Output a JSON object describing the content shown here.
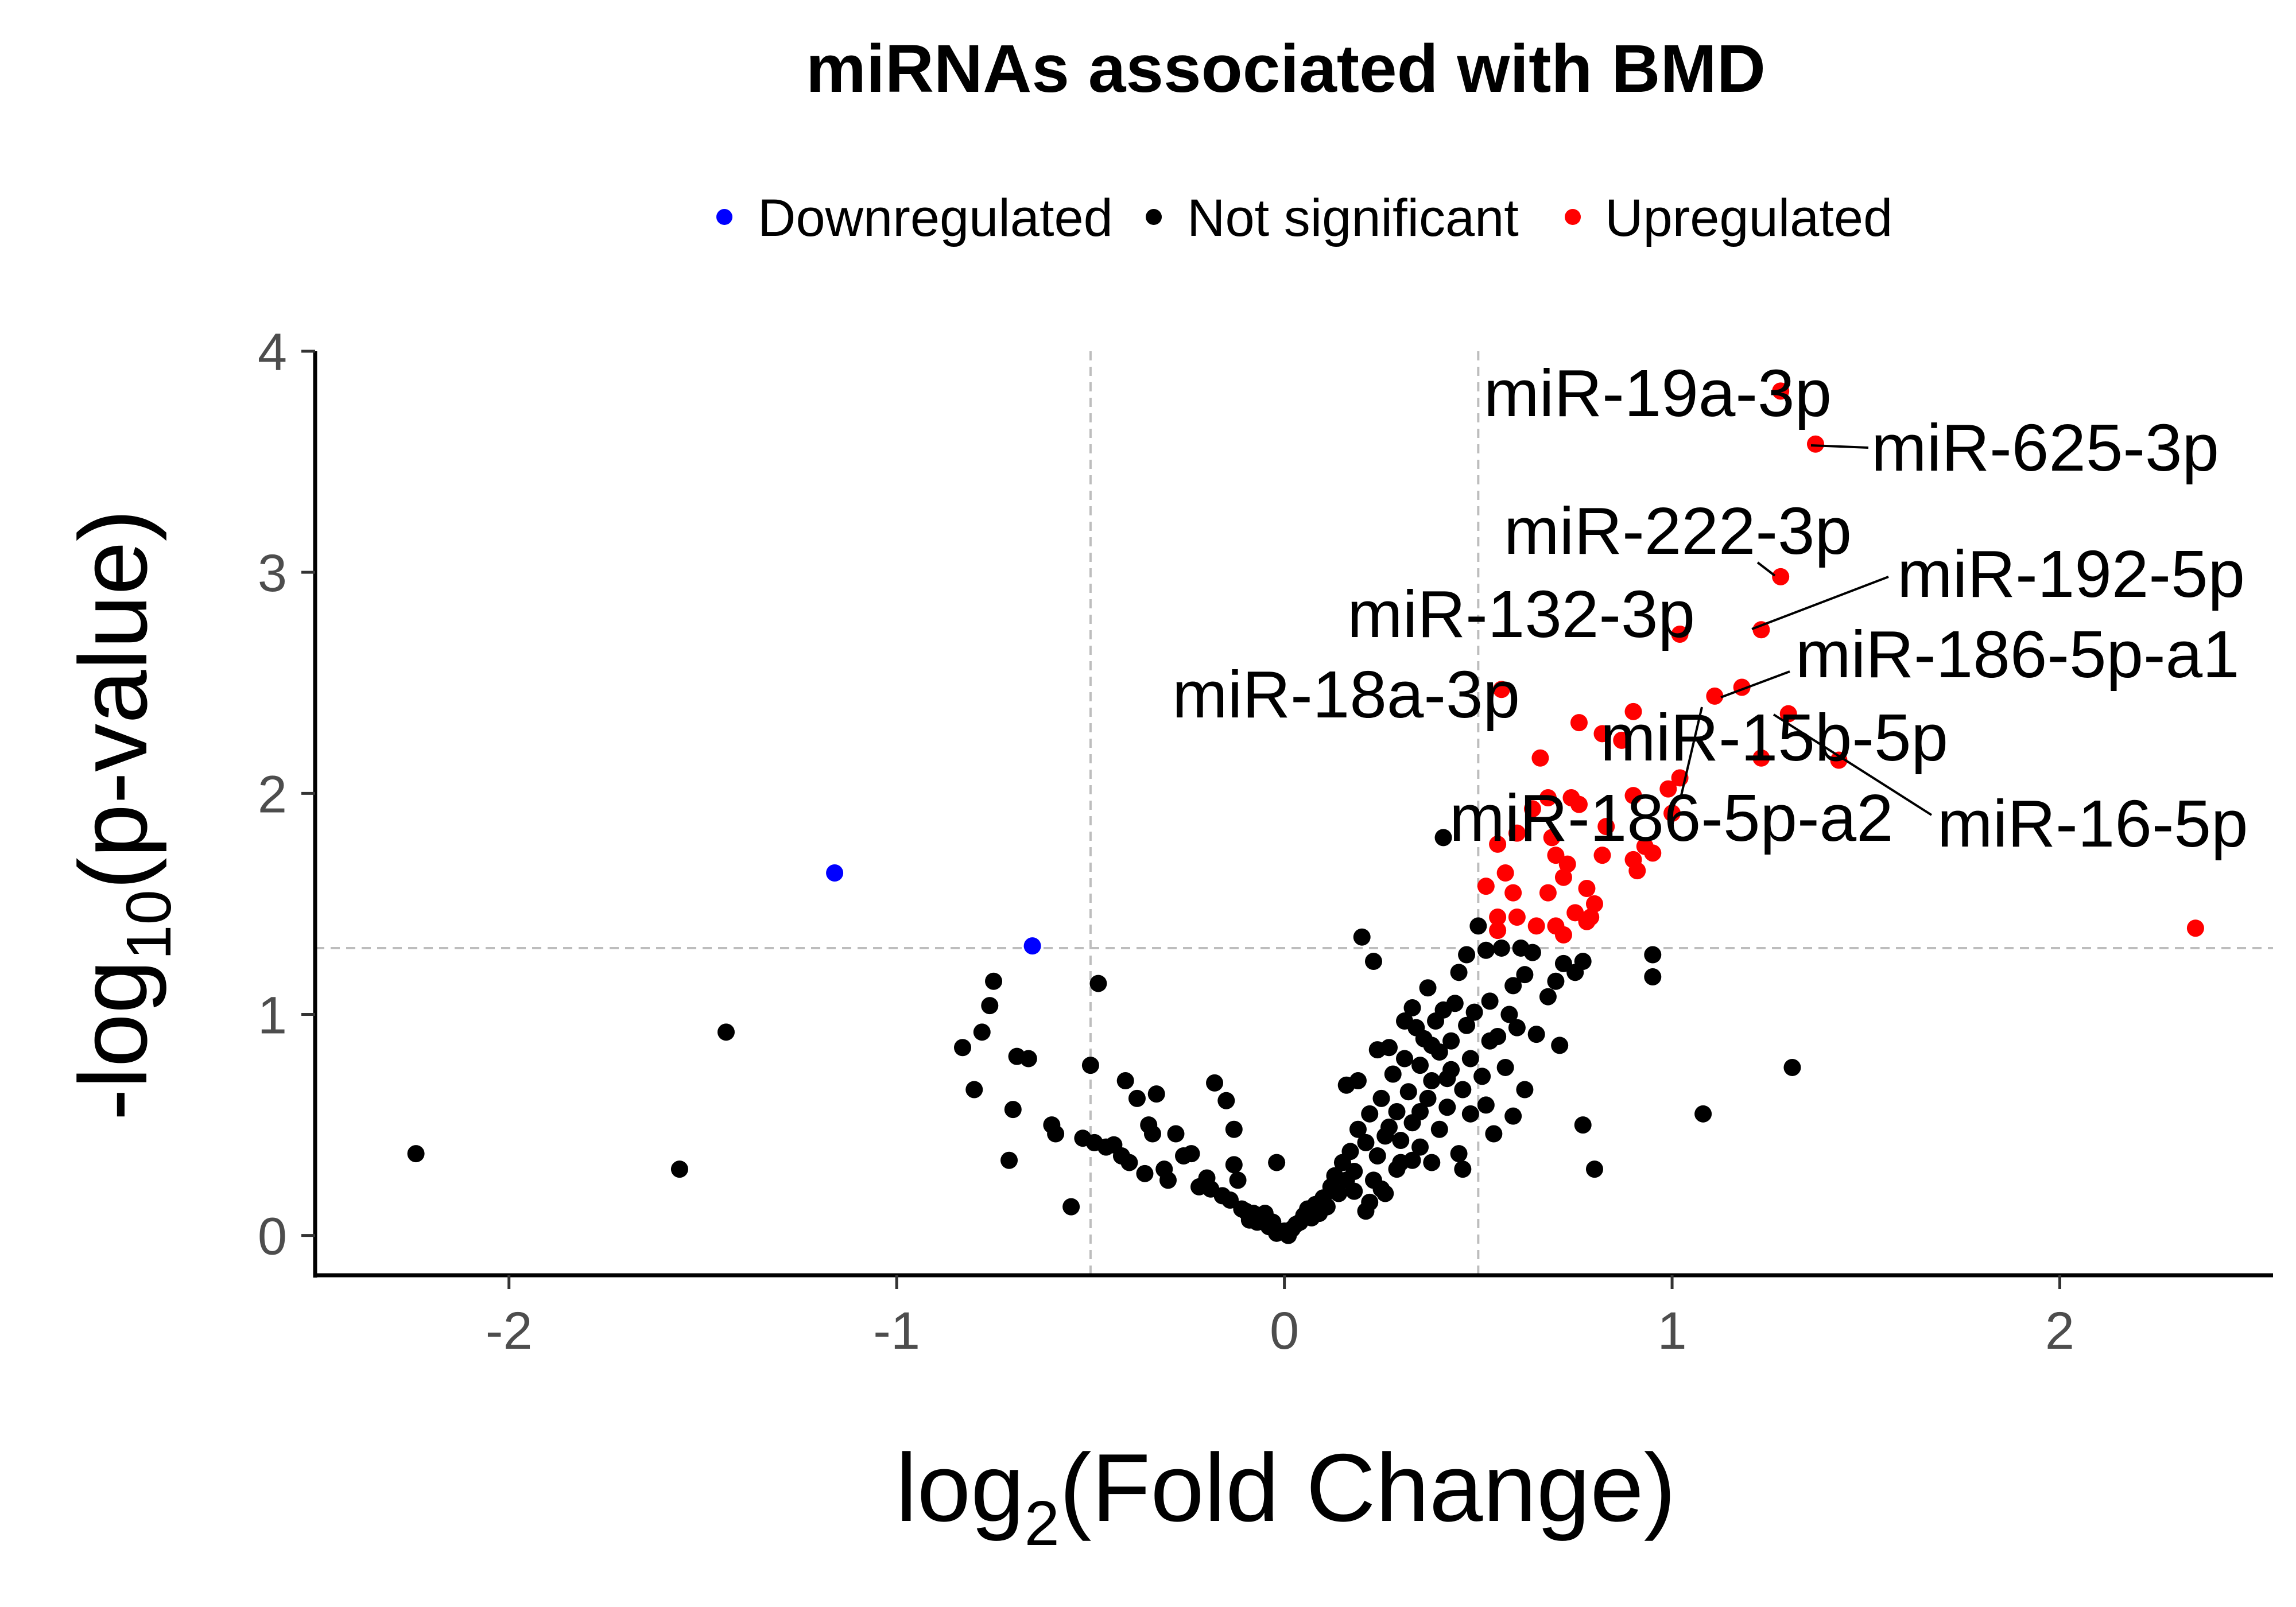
{
  "chart_data": {
    "type": "scatter",
    "title": "miRNAs associated with BMD",
    "xlabel": {
      "base": "log",
      "sub": "2",
      "rest": "(Fold Change)"
    },
    "ylabel": {
      "prefix": "-log",
      "sub": "10",
      "rest": "(p-value)"
    },
    "xlim": [
      -2.5,
      2.55
    ],
    "ylim": [
      -0.18,
      4.0
    ],
    "xticks": [
      -2,
      -1,
      0,
      1,
      2
    ],
    "yticks": [
      0,
      1,
      2,
      3,
      4
    ],
    "grid": false,
    "legend_position": "top",
    "thresholds": {
      "x": [
        -0.5,
        0.5
      ],
      "y": 1.3
    },
    "colors": {
      "Downregulated": "#0000ff",
      "Not significant": "#000000",
      "Upregulated": "#ff0000",
      "threshold_line": "#bdbdbd"
    },
    "series": [
      {
        "name": "Downregulated",
        "points": [
          [
            -1.16,
            1.64
          ],
          [
            -0.65,
            1.31
          ]
        ]
      },
      {
        "name": "Not significant",
        "points": [
          [
            -2.24,
            0.37
          ],
          [
            -1.56,
            0.3
          ],
          [
            -1.44,
            0.92
          ],
          [
            -0.83,
            0.85
          ],
          [
            -0.8,
            0.66
          ],
          [
            -0.78,
            0.92
          ],
          [
            -0.76,
            1.04
          ],
          [
            -0.75,
            1.15
          ],
          [
            -0.7,
            0.57
          ],
          [
            -0.71,
            0.34
          ],
          [
            -0.69,
            0.81
          ],
          [
            -0.66,
            0.8
          ],
          [
            -0.6,
            0.5
          ],
          [
            -0.59,
            0.46
          ],
          [
            -0.55,
            0.13
          ],
          [
            -0.52,
            0.44
          ],
          [
            -0.5,
            0.77
          ],
          [
            -0.48,
            1.14
          ],
          [
            -0.49,
            0.42
          ],
          [
            -0.46,
            0.4
          ],
          [
            -0.44,
            0.41
          ],
          [
            -0.42,
            0.36
          ],
          [
            -0.41,
            0.7
          ],
          [
            -0.38,
            0.62
          ],
          [
            -0.4,
            0.33
          ],
          [
            -0.36,
            0.28
          ],
          [
            -0.35,
            0.5
          ],
          [
            -0.34,
            0.46
          ],
          [
            -0.33,
            0.64
          ],
          [
            -0.31,
            0.3
          ],
          [
            -0.3,
            0.25
          ],
          [
            -0.28,
            0.46
          ],
          [
            -0.26,
            0.36
          ],
          [
            -0.24,
            0.37
          ],
          [
            -0.22,
            0.22
          ],
          [
            -0.2,
            0.26
          ],
          [
            -0.19,
            0.21
          ],
          [
            -0.18,
            0.69
          ],
          [
            -0.16,
            0.18
          ],
          [
            -0.15,
            0.61
          ],
          [
            -0.13,
            0.48
          ],
          [
            -0.14,
            0.16
          ],
          [
            -0.13,
            0.32
          ],
          [
            -0.12,
            0.25
          ],
          [
            -0.11,
            0.12
          ],
          [
            -0.1,
            0.11
          ],
          [
            -0.09,
            0.07
          ],
          [
            -0.08,
            0.1
          ],
          [
            -0.07,
            0.06
          ],
          [
            -0.06,
            0.08
          ],
          [
            -0.05,
            0.1
          ],
          [
            -0.04,
            0.04
          ],
          [
            -0.03,
            0.06
          ],
          [
            -0.02,
            0.33
          ],
          [
            -0.02,
            0.01
          ],
          [
            0.0,
            0.02
          ],
          [
            0.01,
            0.0
          ],
          [
            0.02,
            0.03
          ],
          [
            0.03,
            0.05
          ],
          [
            0.04,
            0.06
          ],
          [
            0.05,
            0.09
          ],
          [
            0.06,
            0.12
          ],
          [
            0.07,
            0.08
          ],
          [
            0.08,
            0.14
          ],
          [
            0.09,
            0.1
          ],
          [
            0.1,
            0.17
          ],
          [
            0.11,
            0.13
          ],
          [
            0.12,
            0.22
          ],
          [
            0.13,
            0.27
          ],
          [
            0.14,
            0.19
          ],
          [
            0.15,
            0.33
          ],
          [
            0.16,
            0.25
          ],
          [
            0.16,
            0.68
          ],
          [
            0.17,
            0.38
          ],
          [
            0.18,
            0.29
          ],
          [
            0.19,
            0.48
          ],
          [
            0.19,
            0.7
          ],
          [
            0.2,
            1.35
          ],
          [
            0.21,
            0.42
          ],
          [
            0.22,
            0.55
          ],
          [
            0.22,
            0.15
          ],
          [
            0.23,
            1.24
          ],
          [
            0.24,
            0.84
          ],
          [
            0.24,
            0.36
          ],
          [
            0.25,
            0.62
          ],
          [
            0.26,
            0.45
          ],
          [
            0.26,
            0.19
          ],
          [
            0.27,
            0.85
          ],
          [
            0.28,
            0.73
          ],
          [
            0.29,
            0.56
          ],
          [
            0.3,
            0.43
          ],
          [
            0.3,
            0.33
          ],
          [
            0.31,
            0.97
          ],
          [
            0.31,
            0.8
          ],
          [
            0.32,
            0.65
          ],
          [
            0.33,
            1.03
          ],
          [
            0.33,
            0.51
          ],
          [
            0.34,
            0.94
          ],
          [
            0.35,
            0.77
          ],
          [
            0.35,
            0.4
          ],
          [
            0.36,
            0.89
          ],
          [
            0.37,
            0.62
          ],
          [
            0.37,
            1.12
          ],
          [
            0.38,
            0.33
          ],
          [
            0.38,
            0.7
          ],
          [
            0.39,
            0.97
          ],
          [
            0.4,
            0.48
          ],
          [
            0.4,
            0.83
          ],
          [
            0.41,
            1.02
          ],
          [
            0.42,
            0.58
          ],
          [
            0.43,
            0.88
          ],
          [
            0.43,
            0.75
          ],
          [
            0.44,
            1.05
          ],
          [
            0.45,
            0.37
          ],
          [
            0.45,
            1.19
          ],
          [
            0.46,
            0.66
          ],
          [
            0.47,
            0.95
          ],
          [
            0.47,
            1.27
          ],
          [
            0.48,
            0.55
          ],
          [
            0.48,
            0.8
          ],
          [
            0.49,
            1.01
          ],
          [
            0.5,
            1.4
          ],
          [
            0.51,
            0.72
          ],
          [
            0.52,
            0.59
          ],
          [
            0.53,
            0.88
          ],
          [
            0.53,
            1.06
          ],
          [
            0.54,
            0.46
          ],
          [
            0.55,
            0.9
          ],
          [
            0.56,
            1.3
          ],
          [
            0.57,
            0.76
          ],
          [
            0.58,
            1.0
          ],
          [
            0.59,
            0.54
          ],
          [
            0.59,
            1.13
          ],
          [
            0.6,
            0.94
          ],
          [
            0.61,
            1.3
          ],
          [
            0.62,
            0.66
          ],
          [
            0.62,
            1.18
          ],
          [
            0.64,
            1.28
          ],
          [
            0.65,
            0.91
          ],
          [
            0.68,
            1.08
          ],
          [
            0.7,
            1.15
          ],
          [
            0.71,
            0.86
          ],
          [
            0.72,
            1.23
          ],
          [
            0.75,
            1.19
          ],
          [
            0.77,
            0.5
          ],
          [
            0.77,
            1.24
          ],
          [
            0.8,
            0.3
          ],
          [
            0.46,
            0.3
          ],
          [
            0.41,
            1.8
          ],
          [
            0.95,
            1.27
          ],
          [
            0.95,
            1.17
          ],
          [
            1.08,
            0.55
          ],
          [
            1.31,
            0.76
          ],
          [
            0.52,
            1.29
          ],
          [
            0.38,
            0.86
          ],
          [
            0.42,
            0.71
          ],
          [
            0.35,
            0.56
          ],
          [
            0.33,
            0.34
          ],
          [
            0.29,
            0.3
          ],
          [
            0.27,
            0.49
          ],
          [
            0.25,
            0.21
          ],
          [
            0.23,
            0.25
          ],
          [
            0.21,
            0.11
          ],
          [
            0.18,
            0.2
          ]
        ]
      },
      {
        "name": "Upregulated",
        "points": [
          [
            1.28,
            3.82
          ],
          [
            1.37,
            3.58
          ],
          [
            1.28,
            2.98
          ],
          [
            1.23,
            2.74
          ],
          [
            1.02,
            2.72
          ],
          [
            1.18,
            2.48
          ],
          [
            1.11,
            2.44
          ],
          [
            0.56,
            2.47
          ],
          [
            0.9,
            2.37
          ],
          [
            1.3,
            2.36
          ],
          [
            1.43,
            2.15
          ],
          [
            1.23,
            2.16
          ],
          [
            0.76,
            2.32
          ],
          [
            0.82,
            2.27
          ],
          [
            0.87,
            2.24
          ],
          [
            0.66,
            2.16
          ],
          [
            1.02,
            2.07
          ],
          [
            0.99,
            2.02
          ],
          [
            0.9,
            1.99
          ],
          [
            0.74,
            1.98
          ],
          [
            0.68,
            1.98
          ],
          [
            0.64,
            1.93
          ],
          [
            1.0,
            1.91
          ],
          [
            0.76,
            1.95
          ],
          [
            0.6,
            1.82
          ],
          [
            0.83,
            1.85
          ],
          [
            0.55,
            1.77
          ],
          [
            0.69,
            1.8
          ],
          [
            0.7,
            1.72
          ],
          [
            0.93,
            1.76
          ],
          [
            0.95,
            1.73
          ],
          [
            0.82,
            1.72
          ],
          [
            0.73,
            1.68
          ],
          [
            0.72,
            1.62
          ],
          [
            0.9,
            1.7
          ],
          [
            0.91,
            1.65
          ],
          [
            0.57,
            1.64
          ],
          [
            0.59,
            1.55
          ],
          [
            0.52,
            1.58
          ],
          [
            0.78,
            1.57
          ],
          [
            0.8,
            1.5
          ],
          [
            0.68,
            1.55
          ],
          [
            0.75,
            1.46
          ],
          [
            0.55,
            1.44
          ],
          [
            0.6,
            1.44
          ],
          [
            0.78,
            1.42
          ],
          [
            0.79,
            1.44
          ],
          [
            0.7,
            1.4
          ],
          [
            0.72,
            1.36
          ],
          [
            0.55,
            1.38
          ],
          [
            0.65,
            1.4
          ],
          [
            2.35,
            1.39
          ]
        ]
      }
    ],
    "annotations": [
      {
        "text": "miR-19a-3p",
        "x": 1.28,
        "y": 3.82
      },
      {
        "text": "miR-625-3p",
        "x": 1.37,
        "y": 3.58
      },
      {
        "text": "miR-222-3p",
        "x": 1.28,
        "y": 2.98
      },
      {
        "text": "miR-192-5p",
        "x": 1.23,
        "y": 2.74
      },
      {
        "text": "miR-132-3p",
        "x": 1.02,
        "y": 2.72
      },
      {
        "text": "miR-186-5p-a1",
        "x": 1.18,
        "y": 2.48
      },
      {
        "text": "miR-18a-3p",
        "x": 0.56,
        "y": 2.47
      },
      {
        "text": "miR-15b-5p",
        "x": 1.3,
        "y": 2.36
      },
      {
        "text": "miR-186-5p-a2",
        "x": 1.11,
        "y": 2.44
      },
      {
        "text": "miR-16-5p",
        "x": 1.43,
        "y": 2.15
      }
    ]
  }
}
